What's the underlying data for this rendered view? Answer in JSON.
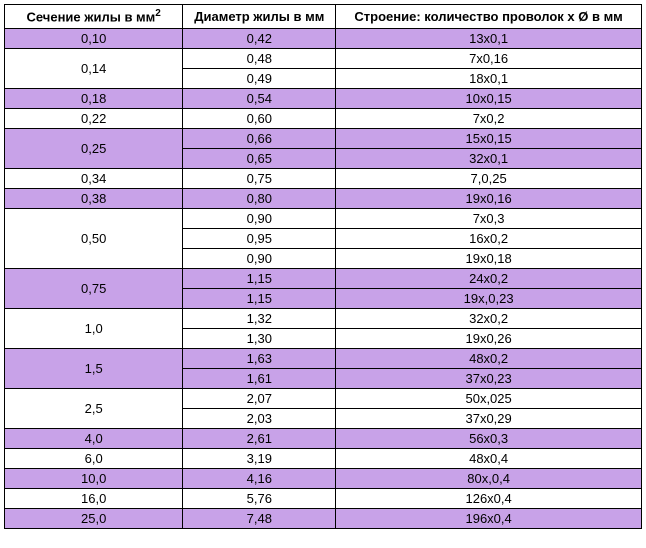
{
  "table": {
    "headers": {
      "col1_pre": "Сечение жилы в мм",
      "col1_sup": "2",
      "col2": "Диаметp жилы в мм",
      "col3": "Стpоение: количество пpоволок x Ø в мм"
    },
    "colors": {
      "purple": "#c8a2e8",
      "white": "#ffffff",
      "border": "#000000"
    },
    "fontsize_header": 13,
    "fontsize_cell": 13,
    "column_widths_pct": [
      28,
      24,
      48
    ],
    "groups": [
      {
        "section": "0,10",
        "fill": "purple",
        "rows": [
          {
            "diameter": "0,42",
            "structure": "13x0,1"
          }
        ]
      },
      {
        "section": "0,14",
        "fill": "white",
        "rows": [
          {
            "diameter": "0,48",
            "structure": "7x0,16"
          },
          {
            "diameter": "0,49",
            "structure": "18x0,1"
          }
        ]
      },
      {
        "section": "0,18",
        "fill": "purple",
        "rows": [
          {
            "diameter": "0,54",
            "structure": "10x0,15"
          }
        ]
      },
      {
        "section": "0,22",
        "fill": "white",
        "rows": [
          {
            "diameter": "0,60",
            "structure": "7x0,2"
          }
        ]
      },
      {
        "section": "0,25",
        "fill": "purple",
        "rows": [
          {
            "diameter": "0,66",
            "structure": "15x0,15"
          },
          {
            "diameter": "0,65",
            "structure": "32x0,1"
          }
        ]
      },
      {
        "section": "0,34",
        "fill": "white",
        "rows": [
          {
            "diameter": "0,75",
            "structure": "7,0,25"
          }
        ]
      },
      {
        "section": "0,38",
        "fill": "purple",
        "rows": [
          {
            "diameter": "0,80",
            "structure": "19x0,16"
          }
        ]
      },
      {
        "section": "0,50",
        "fill": "white",
        "rows": [
          {
            "diameter": "0,90",
            "structure": "7x0,3"
          },
          {
            "diameter": "0,95",
            "structure": "16x0,2"
          },
          {
            "diameter": "0,90",
            "structure": "19x0,18"
          }
        ]
      },
      {
        "section": "0,75",
        "fill": "purple",
        "rows": [
          {
            "diameter": "1,15",
            "structure": "24x0,2"
          },
          {
            "diameter": "1,15",
            "structure": "19x,0,23"
          }
        ]
      },
      {
        "section": "1,0",
        "fill": "white",
        "rows": [
          {
            "diameter": "1,32",
            "structure": "32x0,2"
          },
          {
            "diameter": "1,30",
            "structure": "19x0,26"
          }
        ]
      },
      {
        "section": "1,5",
        "fill": "purple",
        "rows": [
          {
            "diameter": "1,63",
            "structure": "48x0,2"
          },
          {
            "diameter": "1,61",
            "structure": "37x0,23"
          }
        ]
      },
      {
        "section": "2,5",
        "fill": "white",
        "rows": [
          {
            "diameter": "2,07",
            "structure": "50x,025"
          },
          {
            "diameter": "2,03",
            "structure": "37x0,29"
          }
        ]
      },
      {
        "section": "4,0",
        "fill": "purple",
        "rows": [
          {
            "diameter": "2,61",
            "structure": "56x0,3"
          }
        ]
      },
      {
        "section": "6,0",
        "fill": "white",
        "rows": [
          {
            "diameter": "3,19",
            "structure": "48x0,4"
          }
        ]
      },
      {
        "section": "10,0",
        "fill": "purple",
        "rows": [
          {
            "diameter": "4,16",
            "structure": "80x,0,4"
          }
        ]
      },
      {
        "section": "16,0",
        "fill": "white",
        "rows": [
          {
            "diameter": "5,76",
            "structure": "126x0,4"
          }
        ]
      },
      {
        "section": "25,0",
        "fill": "purple",
        "rows": [
          {
            "diameter": "7,48",
            "structure": "196x0,4"
          }
        ]
      }
    ]
  }
}
